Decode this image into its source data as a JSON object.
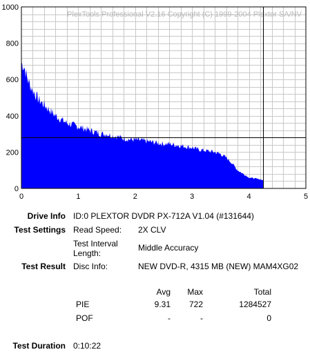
{
  "chart_data": {
    "type": "area",
    "title": "PlexTools Professional V2.16 Copyright (C) 1999-2004 Plextor SA/NV",
    "xlabel": "",
    "ylabel": "",
    "xlim": [
      0,
      5
    ],
    "ylim": [
      0,
      1000
    ],
    "x_ticks": [
      "0",
      "1",
      "2",
      "3",
      "4",
      "5"
    ],
    "y_ticks": [
      "0",
      "200",
      "400",
      "600",
      "800",
      "1000"
    ],
    "grid": true,
    "series": [
      {
        "color": "#0000ff",
        "x": [
          0,
          0.05,
          0.1,
          0.15,
          0.2,
          0.3,
          0.4,
          0.5,
          0.6,
          0.7,
          0.8,
          0.9,
          1.0,
          1.1,
          1.2,
          1.3,
          1.4,
          1.5,
          1.6,
          1.7,
          1.8,
          1.9,
          2.0,
          2.1,
          2.2,
          2.3,
          2.4,
          2.5,
          2.6,
          2.7,
          2.8,
          2.9,
          3.0,
          3.1,
          3.2,
          3.3,
          3.4,
          3.5,
          3.6,
          3.7,
          3.8,
          3.9,
          4.0,
          4.1,
          4.2,
          4.25
        ],
        "y": [
          690,
          670,
          610,
          570,
          540,
          490,
          460,
          430,
          400,
          380,
          360,
          350,
          340,
          330,
          320,
          310,
          300,
          300,
          290,
          285,
          275,
          270,
          268,
          265,
          260,
          255,
          250,
          245,
          245,
          240,
          235,
          230,
          225,
          215,
          210,
          205,
          200,
          190,
          170,
          140,
          100,
          80,
          60,
          55,
          50,
          45
        ]
      }
    ],
    "crosshair": {
      "x": 4.25,
      "y": 280
    }
  },
  "info": {
    "drive_info_label": "Drive Info",
    "drive_info_value": "ID:0 PLEXTOR DVDR PX-712A V1.04 (#131644)",
    "test_settings_label": "Test Settings",
    "read_speed_label": "Read Speed:",
    "read_speed_value": "2X CLV",
    "interval_label_1": "Test Interval",
    "interval_label_2": "Length:",
    "interval_value": "Middle Accuracy",
    "test_result_label": "Test Result",
    "disc_info_label": "Disc Info:",
    "disc_info_value": "NEW DVD-R, 4315 MB (NEW) MAM4XG02",
    "col_avg": "Avg",
    "col_max": "Max",
    "col_total": "Total",
    "pie_label": "PIE",
    "pie_avg": "9.31",
    "pie_max": "722",
    "pie_total": "1284527",
    "pof_label": "POF",
    "pof_avg": "-",
    "pof_max": "-",
    "pof_total": "0",
    "duration_label": "Test Duration",
    "duration_value": "0:10:22"
  }
}
